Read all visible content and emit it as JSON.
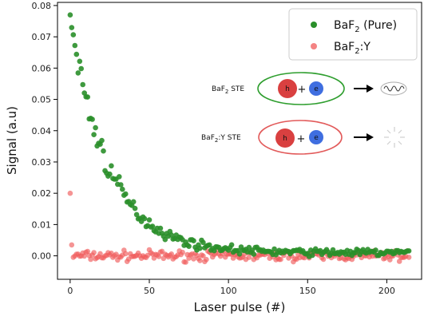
{
  "colors": {
    "pure": "#2a8f2a",
    "doped": "#f05a5a",
    "hole": "#d94040",
    "electron": "#3f6ee0",
    "green_ring": "#2e9e2e",
    "red_ring": "#e25a5a"
  },
  "chart_data": {
    "type": "scatter",
    "xlabel": "Laser pulse (#)",
    "ylabel": "Signal (a.u)",
    "xlim": [
      -8,
      222
    ],
    "ylim": [
      -0.0075,
      0.081
    ],
    "x_ticks": [
      0,
      50,
      100,
      150,
      200
    ],
    "y_ticks": [
      0.0,
      0.01,
      0.02,
      0.03,
      0.04,
      0.05,
      0.06,
      0.07,
      0.08
    ],
    "y_tick_labels": [
      "0.00",
      "0.01",
      "0.02",
      "0.03",
      "0.04",
      "0.05",
      "0.06",
      "0.07",
      "0.08"
    ],
    "grid": false,
    "legend_position": "top-right",
    "series": [
      {
        "name_base": "BaF",
        "name_sub": "2",
        "name_tail": " (Pure)",
        "color": "#2a8f2a",
        "model": {
          "x_start": 0,
          "x_end": 214,
          "step": 1,
          "amplitude": 0.075,
          "tau": 24.0,
          "offset": 0.001,
          "noise": 0.0025,
          "first_value": 0.077
        },
        "points": [
          [
            0,
            0.077
          ],
          [
            1,
            0.07
          ],
          [
            2,
            0.064
          ],
          [
            3,
            0.063
          ],
          [
            4,
            0.056
          ],
          [
            5,
            0.052
          ],
          [
            6,
            0.052
          ],
          [
            7,
            0.043
          ],
          [
            8,
            0.043
          ],
          [
            10,
            0.037
          ],
          [
            12,
            0.033
          ],
          [
            14,
            0.032
          ],
          [
            17,
            0.026
          ],
          [
            20,
            0.024
          ],
          [
            25,
            0.02
          ],
          [
            30,
            0.017
          ],
          [
            40,
            0.012
          ],
          [
            50,
            0.01
          ],
          [
            60,
            0.008
          ],
          [
            70,
            0.006
          ],
          [
            80,
            0.004
          ],
          [
            100,
            0.002
          ],
          [
            150,
            0.0012
          ],
          [
            200,
            0.0008
          ],
          [
            214,
            0.0005
          ]
        ]
      },
      {
        "name_base": "BaF",
        "name_sub": "2",
        "name_tail": ":Y",
        "color": "#f05a5a",
        "model": {
          "x_start": 0,
          "x_end": 214,
          "step": 1,
          "amplitude": 0.0,
          "tau": 1,
          "offset": 0.0,
          "noise": 0.0013,
          "first_value": 0.02,
          "second_value": 0.0035
        },
        "points": [
          [
            0,
            0.02
          ],
          [
            1,
            0.0035
          ],
          [
            50,
            0.0
          ],
          [
            100,
            0.0
          ],
          [
            150,
            0.0
          ],
          [
            200,
            0.0
          ]
        ]
      }
    ]
  },
  "inset": {
    "pure_label_base": "BaF",
    "pure_label_sub": "2",
    "pure_label_tail": " STE",
    "doped_label_base": "BaF",
    "doped_label_sub": "2",
    "doped_label_tail": ":Y STE",
    "hole": "h",
    "electron": "e",
    "plus": "+"
  }
}
